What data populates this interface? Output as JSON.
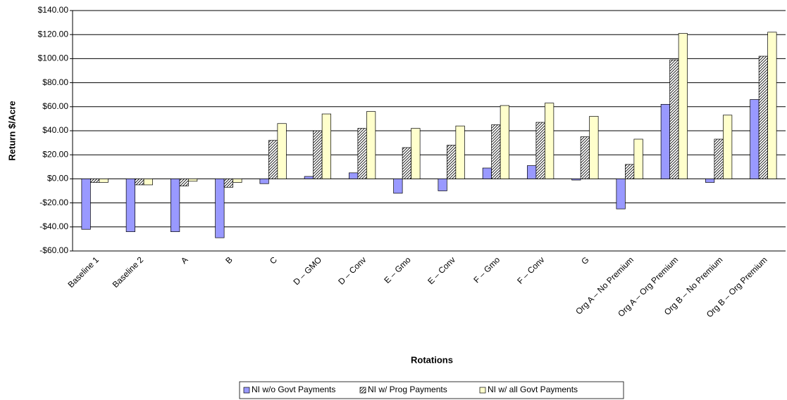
{
  "chart_data": {
    "type": "bar",
    "y_label": "Return $/Acre",
    "x_label": "Rotations",
    "categories": [
      "Baseline 1",
      "Baseline 2",
      "A",
      "B",
      "C",
      "D – GMO",
      "D – Conv",
      "E – Gmo",
      "E – Conv",
      "F – Gmo",
      "F – Conv",
      "G",
      "Org A – No Premium",
      "Org A – Org Premium",
      "Org B – No Premium",
      "Org B – Org Premium"
    ],
    "series": [
      {
        "name": "NI w/o Govt Payments",
        "color": "#9999ff",
        "values": [
          -42,
          -44,
          -44,
          -49,
          -4,
          2,
          5,
          -12,
          -10,
          9,
          11,
          -1,
          -25,
          62,
          -3,
          66
        ]
      },
      {
        "name": "NI w/ Prog Payments",
        "color": "#000000",
        "values": [
          -3,
          -5,
          -6,
          -7,
          32,
          40,
          42,
          26,
          28,
          45,
          47,
          35,
          12,
          99,
          33,
          102
        ]
      },
      {
        "name": "NI w/ all Govt Payments",
        "color": "#ffffcc",
        "values": [
          -3,
          -5,
          -2,
          -3,
          46,
          54,
          56,
          42,
          44,
          61,
          63,
          52,
          33,
          121,
          53,
          122
        ]
      }
    ],
    "ylim": [
      -60,
      140
    ],
    "yticks": [
      {
        "value": -60,
        "label": "-$60.00"
      },
      {
        "value": -40,
        "label": "-$40.00"
      },
      {
        "value": -20,
        "label": "-$20.00"
      },
      {
        "value": 0,
        "label": "$0.00"
      },
      {
        "value": 20,
        "label": "$20.00"
      },
      {
        "value": 40,
        "label": "$40.00"
      },
      {
        "value": 60,
        "label": "$60.00"
      },
      {
        "value": 80,
        "label": "$80.00"
      },
      {
        "value": 100,
        "label": "$100.00"
      },
      {
        "value": 120,
        "label": "$120.00"
      },
      {
        "value": 140,
        "label": "$140.00"
      }
    ],
    "grid": true,
    "legend": "bottom"
  }
}
